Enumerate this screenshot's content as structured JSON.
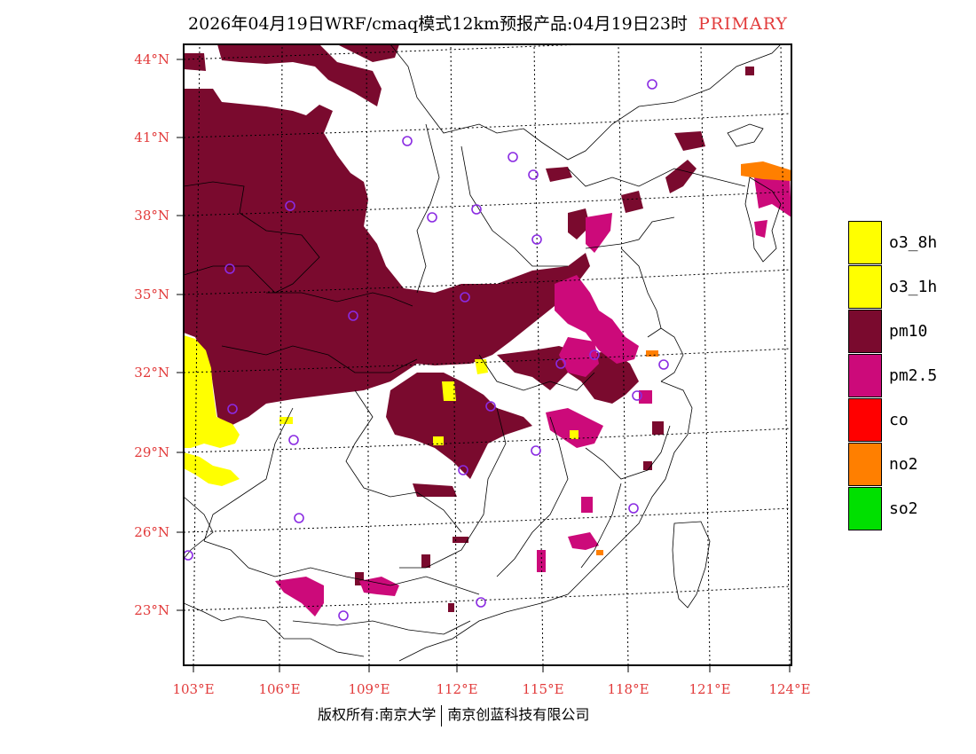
{
  "header": {
    "title": "2026年04月19日WRF/cmaq模式12km预报产品:04月19日23时",
    "tag": "PRIMARY"
  },
  "axes": {
    "lat_labels": [
      "44°N",
      "41°N",
      "38°N",
      "35°N",
      "32°N",
      "29°N",
      "26°N",
      "23°N"
    ],
    "lon_labels": [
      "103°E",
      "106°E",
      "109°E",
      "112°E",
      "115°E",
      "118°E",
      "121°E",
      "124°E"
    ]
  },
  "legend": {
    "items": [
      {
        "label": "o3_8h",
        "color": "#ffff00"
      },
      {
        "label": "o3_1h",
        "color": "#ffff00"
      },
      {
        "label": "pm10",
        "color": "#7a0a2e"
      },
      {
        "label": "pm2.5",
        "color": "#cc0a7a"
      },
      {
        "label": "co",
        "color": "#ff0000"
      },
      {
        "label": "no2",
        "color": "#ff7f00"
      },
      {
        "label": "so2",
        "color": "#00e000"
      }
    ]
  },
  "colors": {
    "pm10": "#7a0a2e",
    "pm25": "#cc0a7a",
    "o3": "#ffff00",
    "no2": "#ff7f00",
    "axis_label": "#e23b3b",
    "station": "#8a2be2"
  },
  "footer": {
    "copyright_left": "版权所有:南京大学",
    "copyright_right": "南京创蓝科技有限公司"
  }
}
